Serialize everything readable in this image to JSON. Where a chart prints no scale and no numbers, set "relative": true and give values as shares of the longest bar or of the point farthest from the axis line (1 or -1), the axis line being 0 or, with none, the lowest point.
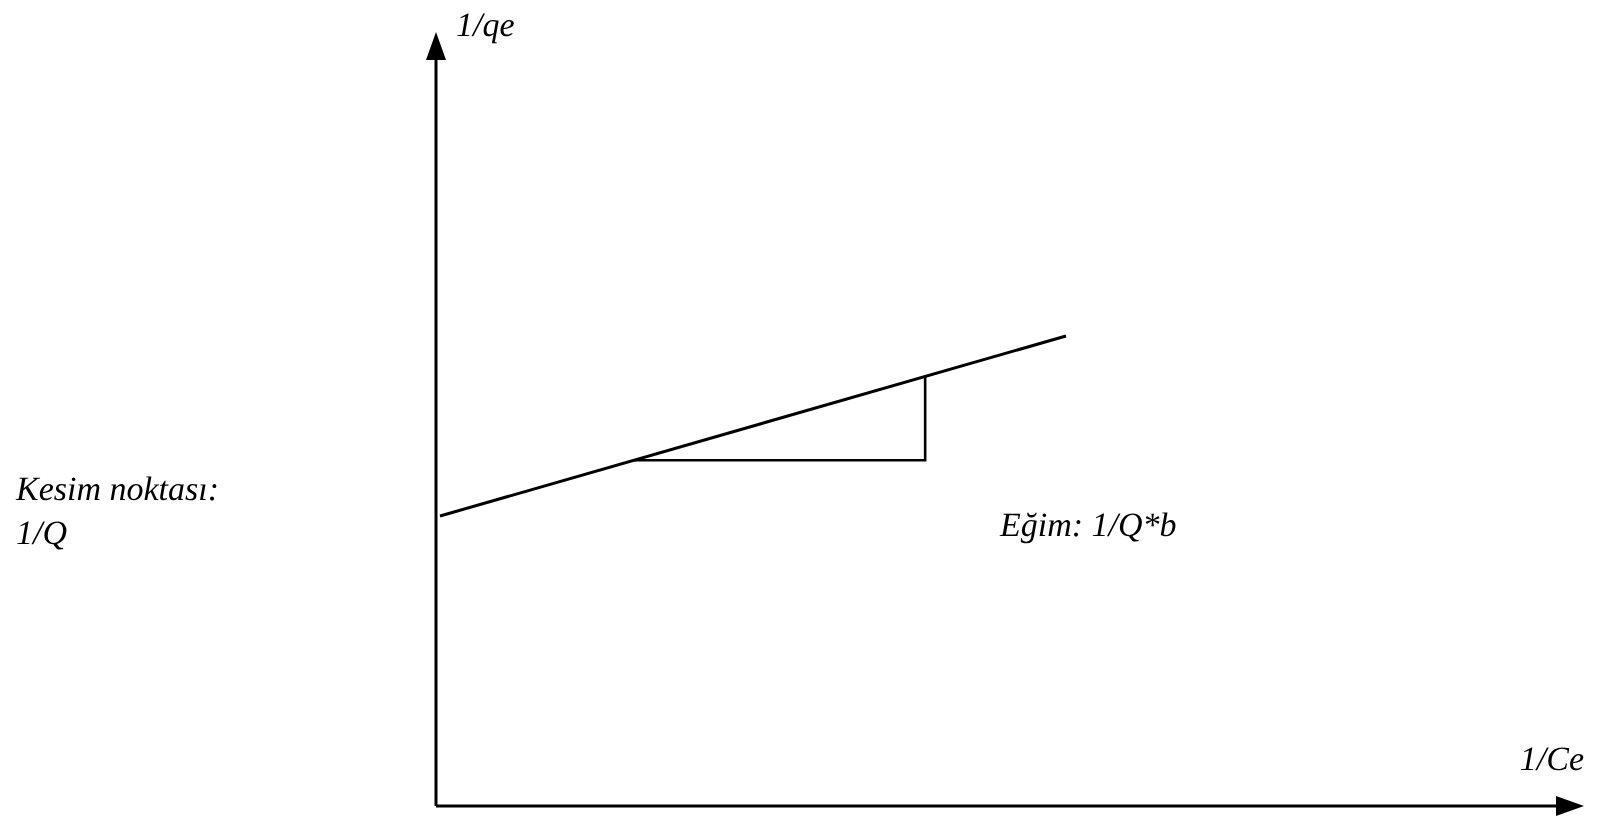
{
  "chart_data": {
    "type": "line",
    "relative": true,
    "xlabel": "1/Ce",
    "categories": [
      null,
      null
    ],
    "series": [
      {
        "color": "#000000",
        "values": [
          0.617,
          1
        ]
      }
    ],
    "annotations": [
      "Kesim noktası:\n1/Q",
      "Eğim: 1/Q*b",
      "1/qe"
    ],
    "marker": "none",
    "line_style": "solid"
  }
}
